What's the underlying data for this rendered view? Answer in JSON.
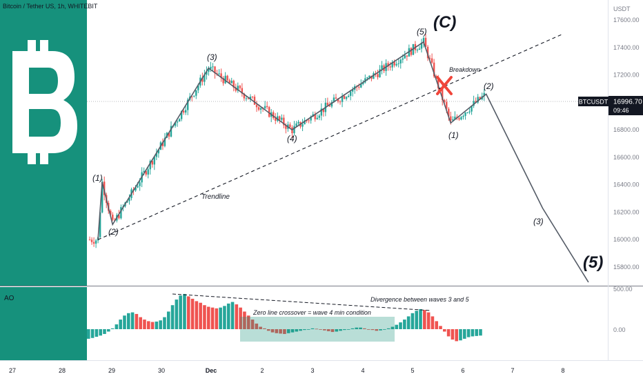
{
  "header": {
    "title": "Bitcoin / Tether US, 1h, WHITEBIT"
  },
  "price_axis": {
    "currency": "USDT",
    "last_price_symbol": "BTCUSDT",
    "last_price": "16996.70",
    "countdown": "09:46",
    "last_price_value": 16996.7
  },
  "ao_pane": {
    "label": "AO",
    "ticks": [
      "500.00",
      "0.00"
    ]
  },
  "logo": {
    "name": "bitcoin-logo-icon",
    "symbol": "B",
    "background": "#16917c",
    "color": "#ffffff"
  },
  "colors": {
    "up": "#26a69a",
    "down": "#ef5350",
    "ao_up": "#26a69a",
    "ao_down": "#ef5350",
    "wave_line": "#545b66"
  },
  "annotations": {
    "wave_c": "(C)",
    "wave_5_big": "(5)",
    "wave_labels": [
      "(1)",
      "(2)",
      "(3)",
      "(4)",
      "(5)"
    ],
    "future_labels": [
      "(1)",
      "(2)",
      "(3)"
    ],
    "trendline": "Trendline",
    "breakdown": "Breakdown",
    "divergence": "Divergence between waves 3 and 5",
    "zero_cross": "Zero line crossover = wave 4 min condition"
  },
  "time_axis": [
    "27",
    "28",
    "29",
    "30",
    "Dec",
    "2",
    "3",
    "4",
    "5",
    "6",
    "7",
    "8"
  ],
  "chart_data": {
    "type": "candlestick",
    "title": "Bitcoin / Tether US, 1h, WHITEBIT",
    "y_unit": "USDT",
    "ylim": [
      15650,
      17720
    ],
    "y_ticks": [
      15800,
      16000,
      16200,
      16400,
      16600,
      16800,
      17000,
      17200,
      17400,
      17600
    ],
    "wave_path": [
      {
        "label": "start",
        "x": "Nov 28 17:00",
        "y": 16000
      },
      {
        "label": "(1)",
        "x": "Nov 28 19:00",
        "y": 16420
      },
      {
        "label": "(2)",
        "x": "Nov 29 00:00",
        "y": 16110
      },
      {
        "label": "(3)",
        "x": "Nov 30 22:00",
        "y": 17250
      },
      {
        "label": "(4)",
        "x": "Dec 2 14:00",
        "y": 16800
      },
      {
        "label": "(5) / (C)",
        "x": "Dec 5 05:00",
        "y": 17440
      },
      {
        "label": "(1)",
        "x": "Dec 5 18:00",
        "y": 16850
      },
      {
        "label": "(2)",
        "x": "Dec 6 11:00",
        "y": 17060
      },
      {
        "label": "(3)",
        "x": "Dec 7 14:00",
        "y": 16230
      },
      {
        "label": "(5)",
        "x": "Dec 8 12:00",
        "y": 15690
      }
    ],
    "trendline": [
      {
        "x": "Nov 28 17:00",
        "y": 16000
      },
      {
        "x": "Dec 8 00:00",
        "y": 17500
      }
    ],
    "ao": {
      "ylim": [
        -250,
        600
      ],
      "values": [
        -120,
        -110,
        -95,
        -80,
        -60,
        -30,
        10,
        60,
        120,
        170,
        200,
        210,
        190,
        150,
        120,
        100,
        90,
        95,
        110,
        150,
        220,
        300,
        370,
        420,
        440,
        410,
        380,
        350,
        330,
        300,
        280,
        270,
        260,
        270,
        290,
        320,
        340,
        310,
        270,
        220,
        170,
        120,
        70,
        30,
        10,
        -20,
        -40,
        -50,
        -55,
        -60,
        -50,
        -40,
        -30,
        -20,
        -10,
        0,
        10,
        5,
        -5,
        -15,
        -25,
        -35,
        -30,
        -20,
        -10,
        0,
        10,
        20,
        20,
        10,
        0,
        -10,
        -20,
        -15,
        -5,
        10,
        30,
        55,
        85,
        120,
        160,
        200,
        230,
        250,
        240,
        210,
        160,
        100,
        40,
        -30,
        -90,
        -130,
        -150,
        -140,
        -120,
        -100,
        -90,
        -85,
        -80
      ]
    }
  }
}
